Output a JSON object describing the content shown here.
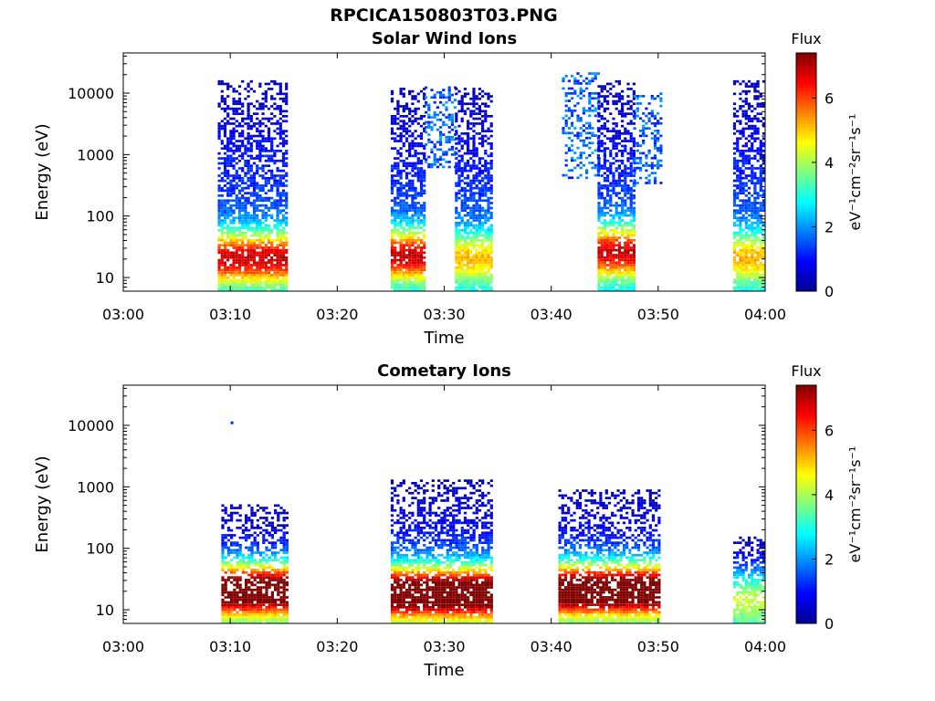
{
  "figure": {
    "title": "RPCICA150803T03.PNG"
  },
  "chart_data": [
    {
      "type": "heatmap",
      "title": "Solar Wind Ions",
      "xlabel": "Time",
      "ylabel": "Energy (eV)",
      "x_ticks": [
        "03:00",
        "03:10",
        "03:20",
        "03:30",
        "03:40",
        "03:50",
        "04:00"
      ],
      "y_ticks": [
        "10",
        "100",
        "1000",
        "10000"
      ],
      "x_range": [
        "03:00",
        "04:00"
      ],
      "y_range": [
        6,
        45000
      ],
      "y_scale": "log",
      "colorbar": {
        "label": "Flux",
        "unit": "eV⁻¹cm⁻²sr⁻¹s⁻¹",
        "ticks": [
          "0",
          "2",
          "4",
          "6"
        ],
        "range": [
          0,
          7.4
        ]
      },
      "blocks": [
        {
          "start": "03:08:50",
          "end": "03:15:20",
          "e_low": 6,
          "e_high": 15000,
          "peak_flux": 5.0,
          "peak_energy": 20
        },
        {
          "start": "03:25:00",
          "end": "03:28:10",
          "e_low": 6,
          "e_high": 12000,
          "peak_flux": 5.0,
          "peak_energy": 22
        },
        {
          "start": "03:28:10",
          "end": "03:31:00",
          "e_low": 600,
          "e_high": 12000,
          "peak_flux": 1.5,
          "peak_energy": 2000,
          "sparse": true
        },
        {
          "start": "03:31:00",
          "end": "03:34:30",
          "e_low": 6,
          "e_high": 12000,
          "peak_flux": 3.2,
          "peak_energy": 20
        },
        {
          "start": "03:41:00",
          "end": "03:44:20",
          "e_low": 400,
          "e_high": 20000,
          "peak_flux": 1.5,
          "peak_energy": 2000,
          "sparse": true
        },
        {
          "start": "03:44:20",
          "end": "03:47:40",
          "e_low": 6,
          "e_high": 15000,
          "peak_flux": 5.0,
          "peak_energy": 25
        },
        {
          "start": "03:47:40",
          "end": "03:50:20",
          "e_low": 300,
          "e_high": 10000,
          "peak_flux": 1.5,
          "peak_energy": 2000,
          "sparse": true
        },
        {
          "start": "03:57:00",
          "end": "04:00:00",
          "e_low": 6,
          "e_high": 15000,
          "peak_flux": 3.3,
          "peak_energy": 20
        }
      ]
    },
    {
      "type": "heatmap",
      "title": "Cometary Ions",
      "xlabel": "Time",
      "ylabel": "Energy (eV)",
      "x_ticks": [
        "03:00",
        "03:10",
        "03:20",
        "03:30",
        "03:40",
        "03:50",
        "04:00"
      ],
      "y_ticks": [
        "10",
        "100",
        "1000",
        "10000"
      ],
      "x_range": [
        "03:00",
        "04:00"
      ],
      "y_range": [
        6,
        45000
      ],
      "y_scale": "log",
      "colorbar": {
        "label": "Flux",
        "unit": "eV⁻¹cm⁻²sr⁻¹s⁻¹",
        "ticks": [
          "0",
          "2",
          "4",
          "6"
        ],
        "range": [
          0,
          7.4
        ]
      },
      "blocks": [
        {
          "start": "03:09:10",
          "end": "03:15:20",
          "e_low": 6,
          "e_high": 500,
          "peak_flux": 7.0,
          "peak_energy": 20
        },
        {
          "start": "03:25:00",
          "end": "03:34:30",
          "e_low": 6,
          "e_high": 1200,
          "peak_flux": 7.0,
          "peak_energy": 18
        },
        {
          "start": "03:40:40",
          "end": "03:50:10",
          "e_low": 6,
          "e_high": 900,
          "peak_flux": 7.0,
          "peak_energy": 20
        },
        {
          "start": "03:57:00",
          "end": "04:00:00",
          "e_low": 6,
          "e_high": 150,
          "peak_flux": 2.5,
          "peak_energy": 15
        }
      ],
      "points": [
        {
          "time": "03:10:10",
          "energy": 11000,
          "flux": 1.2
        }
      ]
    }
  ]
}
